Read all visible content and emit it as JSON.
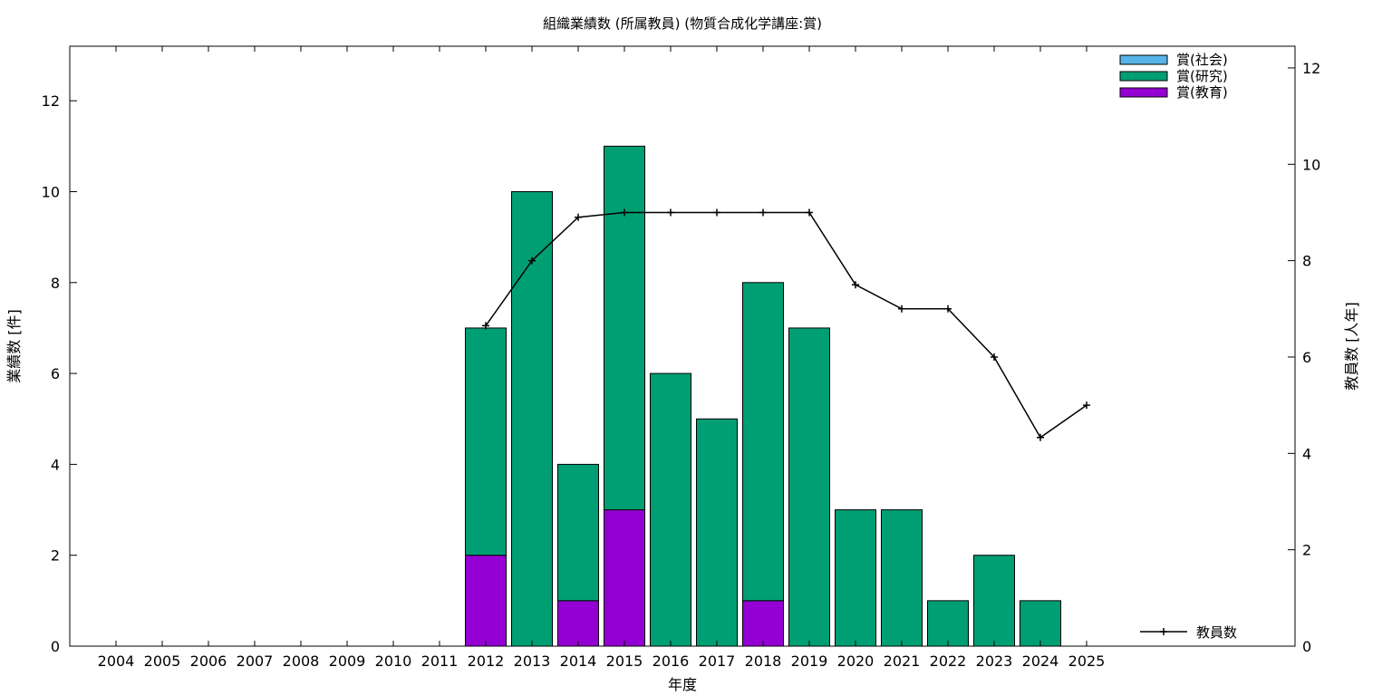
{
  "chart_data": {
    "type": "bar",
    "title": "組織業績数 (所属教員) (物質合成化学講座:賞)",
    "xlabel": "年度",
    "ylabel": "業績数 [件]",
    "y2label": "教員数 [人年]",
    "categories": [
      "2004",
      "2005",
      "2006",
      "2007",
      "2008",
      "2009",
      "2010",
      "2011",
      "2012",
      "2013",
      "2014",
      "2015",
      "2016",
      "2017",
      "2018",
      "2019",
      "2020",
      "2021",
      "2022",
      "2023",
      "2024",
      "2025"
    ],
    "stacked": true,
    "ylim": [
      0,
      13.2
    ],
    "yticks": [
      0,
      2,
      4,
      6,
      8,
      10,
      12
    ],
    "y2lim": [
      0,
      12.45
    ],
    "y2ticks": [
      0,
      2,
      4,
      6,
      8,
      10,
      12
    ],
    "grid": false,
    "legend_position": "top-right",
    "series": [
      {
        "name": "賞(社会)",
        "color": "#56b4e9",
        "values": [
          0,
          0,
          0,
          0,
          0,
          0,
          0,
          0,
          0,
          0,
          0,
          0,
          0,
          0,
          0,
          0,
          0,
          0,
          0,
          0,
          0,
          0
        ]
      },
      {
        "name": "賞(研究)",
        "color": "#009e73",
        "values": [
          0,
          0,
          0,
          0,
          0,
          0,
          0,
          0,
          5,
          10,
          3,
          8,
          6,
          5,
          7,
          7,
          3,
          3,
          1,
          2,
          1,
          0
        ]
      },
      {
        "name": "賞(教育)",
        "color": "#9400d3",
        "values": [
          0,
          0,
          0,
          0,
          0,
          0,
          0,
          0,
          2,
          0,
          1,
          3,
          0,
          0,
          1,
          0,
          0,
          0,
          0,
          0,
          0,
          0
        ]
      }
    ],
    "line_series": {
      "name": "教員数",
      "color": "#000000",
      "axis": "right",
      "values": [
        null,
        null,
        null,
        null,
        null,
        null,
        null,
        null,
        6.65,
        8.0,
        8.9,
        9.0,
        9.0,
        9.0,
        9.0,
        9.0,
        7.5,
        7.0,
        7.0,
        6.0,
        4.33,
        5.0
      ]
    }
  }
}
